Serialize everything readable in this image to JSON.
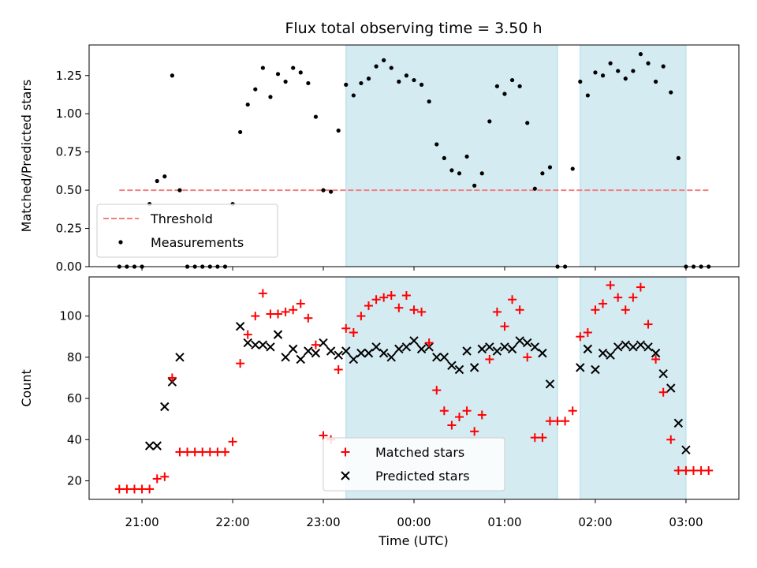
{
  "chart_data": {
    "type": "scatter",
    "title": "Flux total observing time = 3.50 h",
    "xlabel": "Time (UTC)",
    "x_tick_labels": [
      "21:00",
      "22:00",
      "23:00",
      "00:00",
      "01:00",
      "02:00",
      "03:00"
    ],
    "shaded_intervals": [
      {
        "start": "23:15",
        "end": "01:35"
      },
      {
        "start": "01:50",
        "end": "03:00"
      }
    ],
    "colors": {
      "threshold": "#f08080",
      "shade": "#add8e6",
      "measurements": "#000000",
      "matched": "#ff0000",
      "predicted": "#000000"
    },
    "top": {
      "ylabel": "Matched/Predicted stars",
      "ylim": [
        0,
        1.45
      ],
      "y_ticks": [
        0.0,
        0.25,
        0.5,
        0.75,
        1.0,
        1.25
      ],
      "y_tick_labels": [
        "0.00",
        "0.25",
        "0.50",
        "0.75",
        "1.00",
        "1.25"
      ],
      "legend_position": "lower-left",
      "threshold": {
        "name": "Threshold",
        "value": 0.5,
        "from": "20:45",
        "to": "03:15"
      },
      "measurements": {
        "name": "Measurements",
        "x": [
          "20:45",
          "20:50",
          "20:55",
          "21:00",
          "21:05",
          "21:10",
          "21:15",
          "21:20",
          "21:25",
          "21:30",
          "21:35",
          "21:40",
          "21:45",
          "21:50",
          "21:55",
          "22:00",
          "22:05",
          "22:10",
          "22:15",
          "22:20",
          "22:25",
          "22:30",
          "22:35",
          "22:40",
          "22:45",
          "22:50",
          "22:55",
          "23:00",
          "23:05",
          "23:10",
          "23:15",
          "23:20",
          "23:25",
          "23:30",
          "23:35",
          "23:40",
          "23:45",
          "23:50",
          "23:55",
          "00:00",
          "00:05",
          "00:10",
          "00:15",
          "00:20",
          "00:25",
          "00:30",
          "00:35",
          "00:40",
          "00:45",
          "00:50",
          "00:55",
          "01:00",
          "01:05",
          "01:10",
          "01:15",
          "01:20",
          "01:25",
          "01:30",
          "01:35",
          "01:40",
          "01:45",
          "01:50",
          "01:55",
          "02:00",
          "02:05",
          "02:10",
          "02:15",
          "02:20",
          "02:25",
          "02:30",
          "02:35",
          "02:40",
          "02:45",
          "02:50",
          "02:55",
          "03:00",
          "03:05",
          "03:10",
          "03:15"
        ],
        "y": [
          0,
          0,
          0,
          0,
          0.41,
          0.56,
          0.59,
          1.25,
          0.5,
          0,
          0,
          0,
          0,
          0,
          0,
          0.41,
          0.88,
          1.06,
          1.16,
          1.3,
          1.11,
          1.26,
          1.21,
          1.3,
          1.27,
          1.2,
          0.98,
          0.5,
          0.49,
          0.89,
          1.19,
          1.12,
          1.2,
          1.23,
          1.31,
          1.35,
          1.3,
          1.21,
          1.25,
          1.22,
          1.19,
          1.08,
          0.8,
          0.71,
          0.63,
          0.61,
          0.72,
          0.53,
          0.61,
          0.95,
          1.18,
          1.13,
          1.22,
          1.18,
          0.94,
          0.51,
          0.61,
          0.65,
          0,
          0,
          0.64,
          1.21,
          1.12,
          1.27,
          1.25,
          1.33,
          1.28,
          1.23,
          1.28,
          1.39,
          1.33,
          1.21,
          1.31,
          1.14,
          0.71,
          0,
          0,
          0,
          0
        ]
      }
    },
    "bottom": {
      "ylabel": "Count",
      "ylim": [
        11,
        119
      ],
      "y_ticks": [
        20,
        40,
        60,
        80,
        100
      ],
      "y_tick_labels": [
        "20",
        "40",
        "60",
        "80",
        "100"
      ],
      "legend_position": "lower-center",
      "matched": {
        "name": "Matched stars",
        "x": [
          "20:45",
          "20:50",
          "20:55",
          "21:00",
          "21:05",
          "21:10",
          "21:15",
          "21:20",
          "21:25",
          "21:30",
          "21:35",
          "21:40",
          "21:45",
          "21:50",
          "21:55",
          "22:00",
          "22:05",
          "22:10",
          "22:15",
          "22:20",
          "22:25",
          "22:30",
          "22:35",
          "22:40",
          "22:45",
          "22:50",
          "22:55",
          "23:00",
          "23:05",
          "23:10",
          "23:15",
          "23:20",
          "23:25",
          "23:30",
          "23:35",
          "23:40",
          "23:45",
          "23:50",
          "23:55",
          "00:00",
          "00:05",
          "00:10",
          "00:15",
          "00:20",
          "00:25",
          "00:30",
          "00:35",
          "00:40",
          "00:45",
          "00:50",
          "00:55",
          "01:00",
          "01:05",
          "01:10",
          "01:15",
          "01:20",
          "01:25",
          "01:30",
          "01:35",
          "01:40",
          "01:45",
          "01:50",
          "01:55",
          "02:00",
          "02:05",
          "02:10",
          "02:15",
          "02:20",
          "02:25",
          "02:30",
          "02:35",
          "02:40",
          "02:45",
          "02:50",
          "02:55",
          "03:00",
          "03:05",
          "03:10",
          "03:15"
        ],
        "y": [
          16,
          16,
          16,
          16,
          16,
          21,
          22,
          70,
          34,
          34,
          34,
          34,
          34,
          34,
          34,
          39,
          77,
          91,
          100,
          111,
          101,
          101,
          102,
          103,
          106,
          99,
          86,
          42,
          40,
          74,
          94,
          92,
          100,
          105,
          108,
          109,
          110,
          104,
          110,
          103,
          102,
          87,
          64,
          54,
          47,
          51,
          54,
          44,
          52,
          79,
          102,
          95,
          108,
          103,
          80,
          41,
          41,
          49,
          49,
          49,
          54,
          90,
          92,
          103,
          106,
          115,
          109,
          103,
          109,
          114,
          96,
          79,
          63,
          40,
          25,
          25,
          25,
          25,
          25
        ]
      },
      "predicted": {
        "name": "Predicted stars",
        "x": [
          "21:05",
          "21:10",
          "21:15",
          "21:20",
          "21:25",
          "22:05",
          "22:10",
          "22:15",
          "22:20",
          "22:25",
          "22:30",
          "22:35",
          "22:40",
          "22:45",
          "22:50",
          "22:55",
          "23:00",
          "23:05",
          "23:10",
          "23:15",
          "23:20",
          "23:25",
          "23:30",
          "23:35",
          "23:40",
          "23:45",
          "23:50",
          "23:55",
          "00:00",
          "00:05",
          "00:10",
          "00:15",
          "00:20",
          "00:25",
          "00:30",
          "00:35",
          "00:40",
          "00:45",
          "00:50",
          "00:55",
          "01:00",
          "01:05",
          "01:10",
          "01:15",
          "01:20",
          "01:25",
          "01:30",
          "01:50",
          "01:55",
          "02:00",
          "02:05",
          "02:10",
          "02:15",
          "02:20",
          "02:25",
          "02:30",
          "02:35",
          "02:40",
          "02:45",
          "02:50",
          "02:55",
          "03:00"
        ],
        "y": [
          37,
          37,
          56,
          68,
          80,
          95,
          87,
          86,
          86,
          85,
          91,
          80,
          84,
          79,
          83,
          82,
          87,
          83,
          81,
          83,
          79,
          82,
          82,
          85,
          82,
          80,
          84,
          85,
          88,
          84,
          85,
          80,
          80,
          76,
          74,
          83,
          75,
          84,
          85,
          83,
          85,
          84,
          88,
          87,
          85,
          82,
          67,
          75,
          84,
          74,
          82,
          81,
          85,
          86,
          85,
          86,
          85,
          82,
          72,
          65,
          48,
          35
        ]
      }
    }
  }
}
